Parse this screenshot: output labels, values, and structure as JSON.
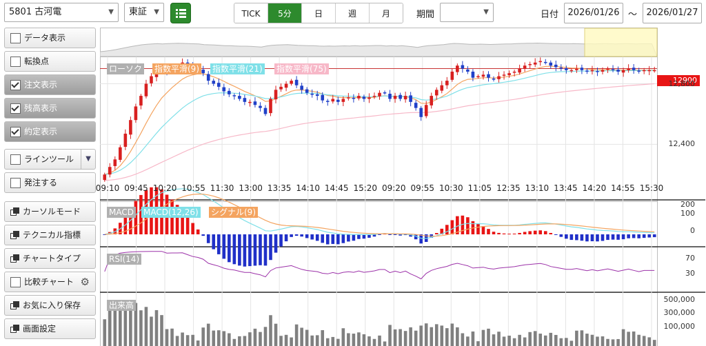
{
  "header": {
    "stock": "5801 古河電",
    "market": "東証",
    "timeframes": [
      {
        "label": "TICK",
        "active": false
      },
      {
        "label": "5分",
        "active": true
      },
      {
        "label": "日",
        "active": false
      },
      {
        "label": "週",
        "active": false
      },
      {
        "label": "月",
        "active": false
      }
    ],
    "period_label": "期間",
    "period_value": "",
    "date_label": "日付",
    "date_from": "2026/01/26",
    "tilde": "～",
    "date_to": "2026/01/27"
  },
  "sidebar": {
    "items": [
      {
        "label": "データ表示",
        "checked": false,
        "on": false,
        "kind": "check"
      },
      {
        "label": "転換点",
        "checked": false,
        "on": false,
        "kind": "check"
      },
      {
        "label": "注文表示",
        "checked": true,
        "on": true,
        "kind": "check"
      },
      {
        "label": "残高表示",
        "checked": true,
        "on": true,
        "kind": "check"
      },
      {
        "label": "約定表示",
        "checked": true,
        "on": true,
        "kind": "check"
      },
      {
        "label": "ラインツール",
        "checked": false,
        "on": false,
        "kind": "check-dropdown"
      },
      {
        "label": "発注する",
        "checked": false,
        "on": false,
        "kind": "check"
      },
      {
        "label": "カーソルモード",
        "kind": "icon"
      },
      {
        "label": "テクニカル指標",
        "kind": "icon"
      },
      {
        "label": "チャートタイプ",
        "kind": "icon"
      },
      {
        "label": "比較チャート",
        "checked": false,
        "kind": "check-gear"
      },
      {
        "label": "お気に入り保存",
        "kind": "icon"
      },
      {
        "label": "画面設定",
        "kind": "icon"
      }
    ]
  },
  "chart_data": {
    "type": "candlestick",
    "legend": [
      {
        "label": "ローソク",
        "color": "#b0b0b0"
      },
      {
        "label": "指数平滑(9)",
        "color": "#f4a460"
      },
      {
        "label": "指数平滑(21)",
        "color": "#7fe0e8"
      },
      {
        "label": "指数平滑(75)",
        "color": "#f7b8c8"
      }
    ],
    "price_ticks": [
      "12,800",
      "12,400"
    ],
    "price_tick_values": [
      12800,
      12400
    ],
    "price_range": [
      12160,
      12980
    ],
    "order_price_label": "12900",
    "order_price": 12900,
    "x_ticks": [
      "09:10",
      "09:45",
      "10:20",
      "10:55",
      "11:30",
      "13:00",
      "13:35",
      "14:10",
      "14:45",
      "15:20",
      "09:20",
      "09:55",
      "10:30",
      "11:05",
      "12:35",
      "13:10",
      "13:45",
      "14:20",
      "14:55",
      "15:30"
    ],
    "closes": [
      12200,
      12250,
      12300,
      12380,
      12470,
      12560,
      12650,
      12720,
      12800,
      12850,
      12880,
      12900,
      12880,
      12910,
      12920,
      12940,
      12920,
      12900,
      12890,
      12870,
      12820,
      12800,
      12780,
      12750,
      12730,
      12720,
      12700,
      12680,
      12680,
      12660,
      12640,
      12600,
      12700,
      12760,
      12780,
      12800,
      12820,
      12790,
      12760,
      12740,
      12730,
      12720,
      12690,
      12680,
      12700,
      12680,
      12700,
      12710,
      12700,
      12720,
      12700,
      12710,
      12720,
      12740,
      12740,
      12700,
      12720,
      12700,
      12720,
      12680,
      12640,
      12580,
      12660,
      12720,
      12760,
      12790,
      12820,
      12880,
      12920,
      12900,
      12880,
      12840,
      12850,
      12860,
      12840,
      12830,
      12850,
      12860,
      12870,
      12880,
      12900,
      12920,
      12930,
      12940,
      12950,
      12940,
      12920,
      12910,
      12900,
      12890,
      12890,
      12900,
      12890,
      12880,
      12890,
      12880,
      12890,
      12900,
      12890,
      12880,
      12890,
      12900,
      12890,
      12880,
      12890,
      12890,
      12890
    ],
    "indicators": {
      "macd_legend": [
        {
          "label": "MACD",
          "color": "#b0b0b0"
        },
        {
          "label": "MACD(12,26)",
          "color": "#7fe0e8"
        },
        {
          "label": "シグナル(9)",
          "color": "#f4a460"
        }
      ],
      "macd_ticks": [
        "200",
        "100",
        "0"
      ],
      "rsi_legend": "RSI(14)",
      "rsi_ticks": [
        "70",
        "30"
      ],
      "volume_legend": "出来高",
      "volume_ticks": [
        "500,000",
        "300,000",
        "100,000"
      ]
    }
  }
}
